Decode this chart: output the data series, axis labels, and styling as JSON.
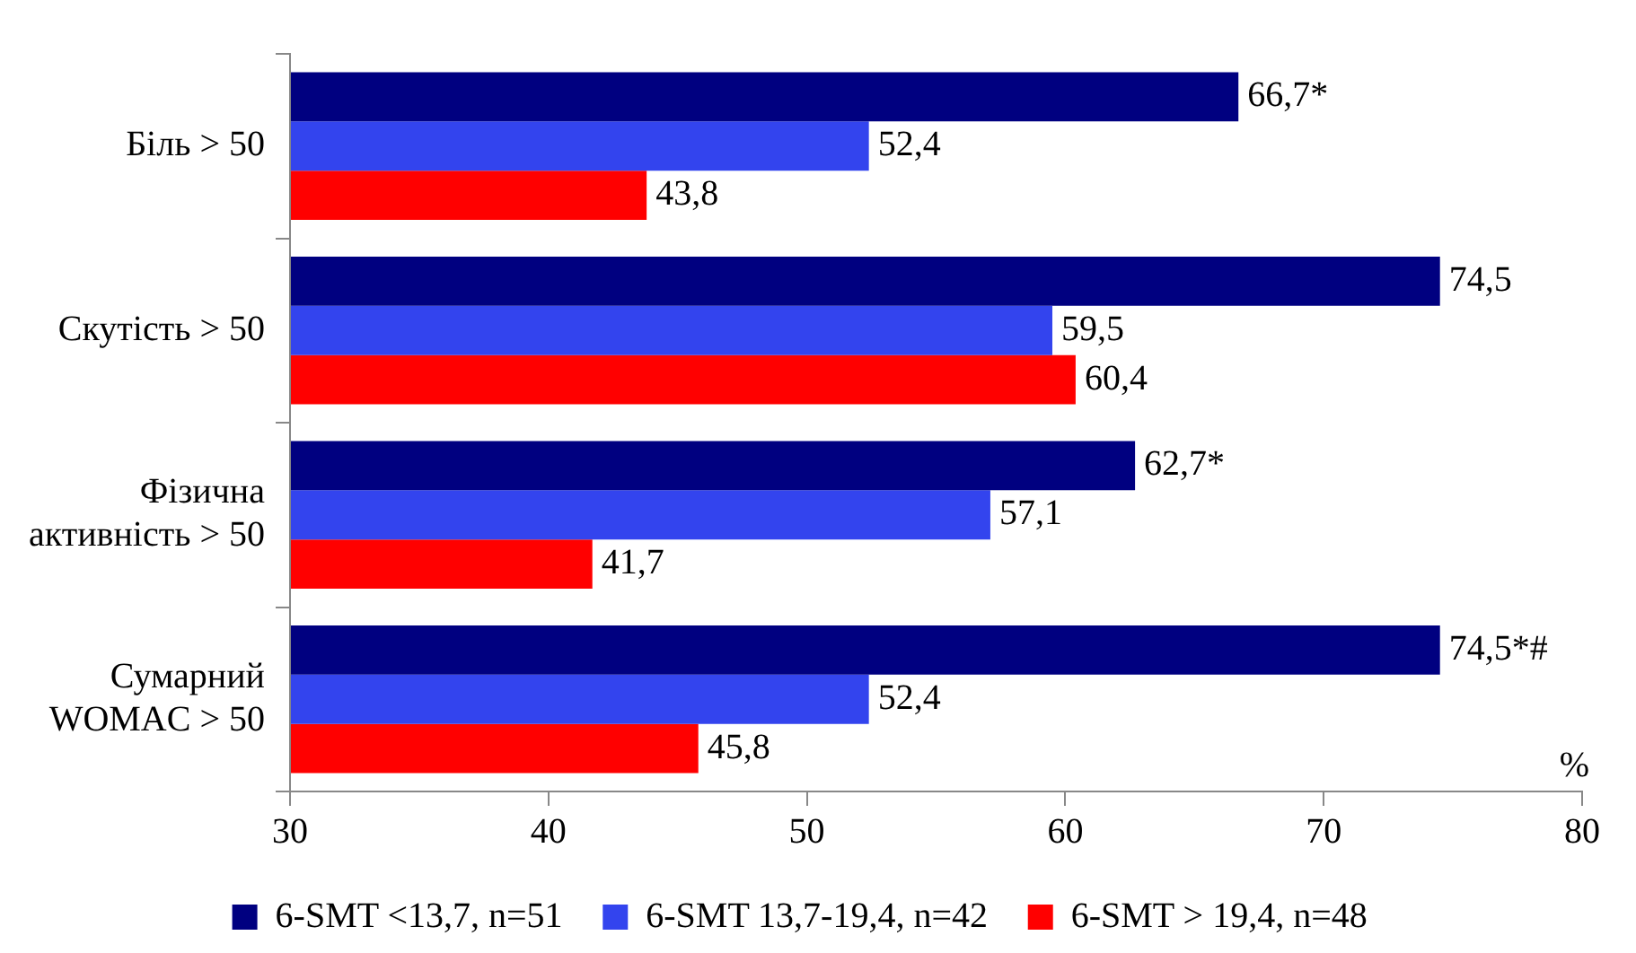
{
  "chart_data": {
    "type": "bar",
    "orientation": "horizontal",
    "xlabel": "%",
    "categories": [
      "Біль > 50",
      "Скутість > 50",
      "Фізична активність > 50",
      "Сумарний WOMAC > 50"
    ],
    "series": [
      {
        "name": "6-SMT <13,7, n=51",
        "color": "#000080",
        "values": [
          66.7,
          74.5,
          62.7,
          74.5
        ],
        "value_labels": [
          "66,7*",
          "74,5",
          "62,7*",
          "74,5*#"
        ]
      },
      {
        "name": "6-SMT 13,7-19,4, n=42",
        "color": "#3344ee",
        "values": [
          52.4,
          59.5,
          57.1,
          52.4
        ],
        "value_labels": [
          "52,4",
          "59,5",
          "57,1",
          "52,4"
        ]
      },
      {
        "name": "6-SMT > 19,4, n=48",
        "color": "#ff0000",
        "values": [
          43.8,
          60.4,
          41.7,
          45.8
        ],
        "value_labels": [
          "43,8",
          "60,4",
          "41,7",
          "45,8"
        ]
      }
    ],
    "xlim": [
      30,
      80
    ],
    "xticks": [
      30,
      40,
      50,
      60,
      70,
      80
    ],
    "grid": false,
    "legend": "bottom"
  }
}
